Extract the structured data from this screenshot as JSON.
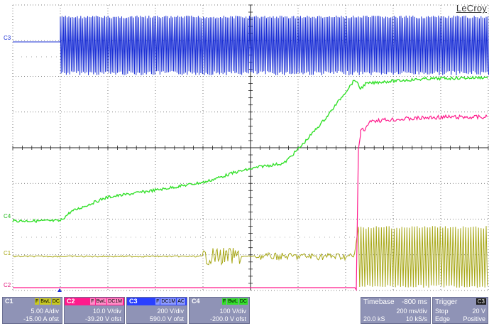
{
  "brand": "LeCroy",
  "channel_markers": [
    "C3",
    "C4",
    "C1",
    "C2"
  ],
  "colors": {
    "c1": "#a8a818",
    "c2": "#ff1a8c",
    "c3": "#1a2fd6",
    "c4": "#33e02a",
    "grid": "#2a2a2a",
    "panel": "#8f93b6"
  },
  "channels": [
    {
      "name": "C1",
      "flags": [
        "F",
        "BwL",
        "DC"
      ],
      "scale": "5.00 A/div",
      "offset": "-15.00 A ofst",
      "color": "#c8c820"
    },
    {
      "name": "C2",
      "flags": [
        "F",
        "BwL",
        "DC1M"
      ],
      "scale": "10.0 V/div",
      "offset": "-39.20 V ofst",
      "color": "#ff1a8c"
    },
    {
      "name": "C3",
      "flags": [
        "F",
        "DC1M",
        "AC"
      ],
      "scale": "200 V/div",
      "offset": "590.0 V ofst",
      "color": "#2a40ff"
    },
    {
      "name": "C4",
      "flags": [
        "F",
        "BwL",
        "DC"
      ],
      "scale": "100 V/div",
      "offset": "-200.0 V ofst",
      "color": "#33e02a"
    }
  ],
  "timebase": {
    "label": "Timebase",
    "delay": "-800 ms",
    "per_div": "200 ms/div",
    "samples": "20.0 kS",
    "rate": "10 kS/s"
  },
  "trigger": {
    "label": "Trigger",
    "source": "C3",
    "mode": "Stop",
    "level": "20 V",
    "type": "Edge",
    "slope": "Positive"
  }
}
